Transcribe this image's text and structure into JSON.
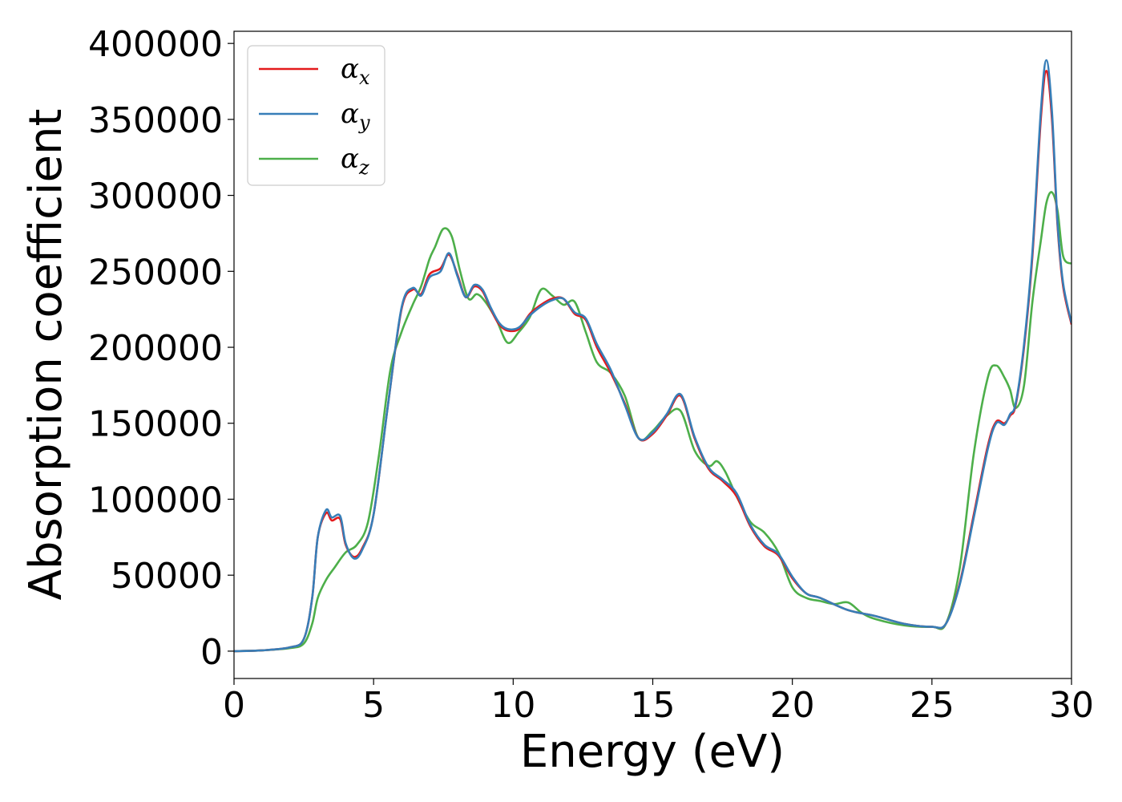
{
  "chart_data": {
    "type": "line",
    "xlabel": "Energy (eV)",
    "ylabel": "Absorption coefficient",
    "xlim": [
      0,
      30
    ],
    "ylim": [
      -18000,
      408000
    ],
    "xticks": [
      0,
      5,
      10,
      15,
      20,
      25,
      30
    ],
    "yticks": [
      0,
      50000,
      100000,
      150000,
      200000,
      250000,
      300000,
      350000,
      400000
    ],
    "grid": false,
    "legend_placement": "top-left",
    "series": [
      {
        "name": "αx",
        "symbol": "α",
        "subscript": "x",
        "color": "#e41a1c",
        "x": [
          0,
          1,
          2,
          2.5,
          2.8,
          3.0,
          3.3,
          3.5,
          3.8,
          4.0,
          4.3,
          4.6,
          5.0,
          5.5,
          6.0,
          6.4,
          6.7,
          7.0,
          7.4,
          7.7,
          8.0,
          8.3,
          8.6,
          8.9,
          9.2,
          9.5,
          9.8,
          10.2,
          10.6,
          11.0,
          11.4,
          11.8,
          12.2,
          12.6,
          13.0,
          13.5,
          14.0,
          14.5,
          15.0,
          15.5,
          16.0,
          16.5,
          17.0,
          17.5,
          18.0,
          18.5,
          19.0,
          19.5,
          20.0,
          20.5,
          21.0,
          22.0,
          23.0,
          24.0,
          25.0,
          25.5,
          26.0,
          26.5,
          27.0,
          27.3,
          27.6,
          27.8,
          28.0,
          28.3,
          28.6,
          28.9,
          29.1,
          29.3,
          29.5,
          29.7,
          30.0
        ],
        "y": [
          0,
          500,
          2500,
          8000,
          35000,
          75000,
          91000,
          86000,
          87000,
          70000,
          62000,
          68000,
          90000,
          160000,
          225000,
          238000,
          235000,
          248000,
          252000,
          261000,
          248000,
          233000,
          240000,
          237000,
          225000,
          215000,
          211000,
          212000,
          222000,
          228000,
          232000,
          232000,
          222000,
          218000,
          200000,
          183000,
          163000,
          140000,
          143000,
          155000,
          168000,
          140000,
          120000,
          112000,
          102000,
          82000,
          69000,
          63000,
          48000,
          38000,
          35000,
          27000,
          23000,
          18000,
          16000,
          18000,
          45000,
          90000,
          135000,
          151000,
          150000,
          155000,
          162000,
          200000,
          260000,
          350000,
          382000,
          350000,
          280000,
          240000,
          215000
        ]
      },
      {
        "name": "αy",
        "symbol": "α",
        "subscript": "y",
        "color": "#377eb8",
        "x": [
          0,
          1,
          2,
          2.5,
          2.8,
          3.0,
          3.3,
          3.5,
          3.8,
          4.0,
          4.3,
          4.6,
          5.0,
          5.5,
          6.0,
          6.4,
          6.7,
          7.0,
          7.4,
          7.7,
          8.0,
          8.3,
          8.6,
          8.9,
          9.2,
          9.5,
          9.8,
          10.2,
          10.6,
          11.0,
          11.4,
          11.8,
          12.2,
          12.6,
          13.0,
          13.5,
          14.0,
          14.5,
          15.0,
          15.5,
          16.0,
          16.5,
          17.0,
          17.5,
          18.0,
          18.5,
          19.0,
          19.5,
          20.0,
          20.5,
          21.0,
          22.0,
          23.0,
          24.0,
          25.0,
          25.5,
          26.0,
          26.5,
          27.0,
          27.3,
          27.6,
          27.8,
          28.0,
          28.3,
          28.6,
          28.9,
          29.1,
          29.3,
          29.5,
          29.7,
          30.0
        ],
        "y": [
          0,
          500,
          2500,
          8000,
          35000,
          75000,
          93000,
          88000,
          89000,
          71000,
          61000,
          67000,
          90000,
          160000,
          226000,
          239000,
          234000,
          246000,
          250000,
          262000,
          247000,
          233000,
          241000,
          238000,
          226000,
          216000,
          212000,
          213000,
          221000,
          227000,
          231000,
          232000,
          223000,
          219000,
          202000,
          185000,
          162000,
          140000,
          144000,
          156000,
          169000,
          141000,
          121000,
          113000,
          104000,
          83000,
          70000,
          64000,
          49000,
          38000,
          35000,
          27000,
          23000,
          18000,
          16000,
          18000,
          44000,
          88000,
          133000,
          150000,
          149000,
          156000,
          163000,
          202000,
          263000,
          355000,
          389000,
          355000,
          282000,
          242000,
          216000
        ]
      },
      {
        "name": "αz",
        "symbol": "α",
        "subscript": "z",
        "color": "#4daf4a",
        "x": [
          0,
          1,
          2,
          2.5,
          2.8,
          3.0,
          3.3,
          3.6,
          4.0,
          4.4,
          4.8,
          5.2,
          5.6,
          6.0,
          6.4,
          6.7,
          7.0,
          7.2,
          7.5,
          7.8,
          8.1,
          8.4,
          8.7,
          9.0,
          9.4,
          9.8,
          10.2,
          10.6,
          11.0,
          11.4,
          11.8,
          12.2,
          12.6,
          13.0,
          13.5,
          14.0,
          14.5,
          15.0,
          15.5,
          16.0,
          16.5,
          17.0,
          17.3,
          17.6,
          18.0,
          18.5,
          19.0,
          19.5,
          20.0,
          20.5,
          21.0,
          21.5,
          22.0,
          22.5,
          23.0,
          24.0,
          25.0,
          25.5,
          26.0,
          26.5,
          27.0,
          27.3,
          27.6,
          27.8,
          28.0,
          28.3,
          28.6,
          28.9,
          29.1,
          29.3,
          29.5,
          29.7,
          30.0
        ],
        "y": [
          0,
          500,
          2000,
          5000,
          18000,
          35000,
          47000,
          55000,
          65000,
          70000,
          85000,
          130000,
          185000,
          210000,
          228000,
          240000,
          258000,
          266000,
          278000,
          273000,
          250000,
          232000,
          235000,
          230000,
          218000,
          203000,
          210000,
          220000,
          238000,
          234000,
          228000,
          230000,
          210000,
          190000,
          183000,
          168000,
          140000,
          145000,
          155000,
          158000,
          132000,
          122000,
          125000,
          118000,
          102000,
          85000,
          78000,
          65000,
          42000,
          35000,
          33000,
          31000,
          32000,
          25000,
          21000,
          17000,
          16000,
          18000,
          55000,
          130000,
          180000,
          188000,
          180000,
          172000,
          160000,
          175000,
          230000,
          270000,
          295000,
          302000,
          290000,
          260000,
          255000
        ]
      }
    ]
  }
}
